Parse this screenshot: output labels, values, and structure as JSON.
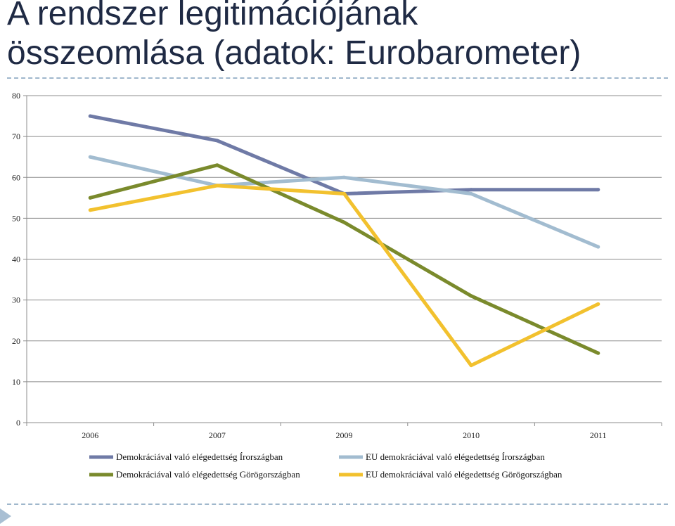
{
  "slide": {
    "title_line1": "A rendszer legitimációjának",
    "title_line2": "összeomlása (adatok: Eurobarometer)"
  },
  "chart_data": {
    "type": "line",
    "categories": [
      "2006",
      "2007",
      "2009",
      "2010",
      "2011"
    ],
    "ylim": [
      0,
      80
    ],
    "yticks": [
      0,
      10,
      20,
      30,
      40,
      50,
      60,
      70,
      80
    ],
    "grid": true,
    "legend_position": "bottom",
    "series": [
      {
        "name": "Demokráciával való elégedettség Írországban",
        "color": "#6f7aa6",
        "values": [
          75,
          69,
          56,
          57,
          57
        ]
      },
      {
        "name": "EU demokráciával való elégedettség Írországban",
        "color": "#a2bcd0",
        "values": [
          65,
          58,
          60,
          56,
          43
        ]
      },
      {
        "name": "Demokráciával való elégedettség Görögországban",
        "color": "#7a8a2c",
        "values": [
          55,
          63,
          49,
          31,
          17
        ]
      },
      {
        "name": "EU demokráciával való elégedettség Görögországban",
        "color": "#f2c12e",
        "values": [
          52,
          58,
          56,
          14,
          29
        ]
      }
    ]
  }
}
